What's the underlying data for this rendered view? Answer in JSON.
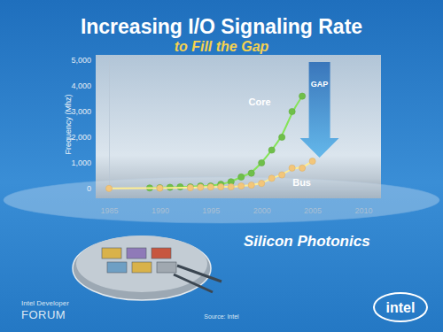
{
  "chart_data": {
    "type": "scatter",
    "title": "Increasing I/O Signaling Rate",
    "subtitle": "to Fill the Gap",
    "y_label": "Frequency (Mhz)",
    "xlim": [
      1985,
      2010
    ],
    "xticks": [
      1985,
      1990,
      1995,
      2000,
      2005,
      2010
    ],
    "ylim": [
      0,
      5000
    ],
    "yticks": [
      0,
      {
        "value": 1000,
        "label": "1,000"
      },
      {
        "value": 2000,
        "label": "2,000"
      },
      {
        "value": 3000,
        "label": "3,000"
      },
      {
        "value": 4000,
        "label": "4,000"
      },
      {
        "value": 5000,
        "label": "5,000"
      }
    ],
    "grid": false,
    "annotations": [
      "GAP"
    ],
    "series": [
      {
        "name": "Core",
        "color": "#6fbf4a",
        "marker": "circle",
        "line_style": "solid",
        "x": [
          1989,
          1990,
          1991,
          1992,
          1993,
          1994,
          1995,
          1996,
          1997,
          1998,
          1999,
          2000,
          2001,
          2002,
          2003,
          2004
        ],
        "values": [
          25,
          33,
          50,
          66,
          66,
          100,
          100,
          166,
          266,
          450,
          600,
          1000,
          1500,
          2000,
          3000,
          3600
        ]
      },
      {
        "name": "Bus",
        "color": "#f3c67a",
        "marker": "circle",
        "line_style": "solid",
        "x": [
          1985,
          1990,
          1993,
          1994,
          1995,
          1996,
          1997,
          1998,
          1999,
          2000,
          2001,
          2002,
          2003,
          2004,
          2005
        ],
        "values": [
          5,
          16,
          33,
          50,
          60,
          66,
          66,
          100,
          133,
          200,
          400,
          533,
          800,
          800,
          1066
        ]
      }
    ]
  },
  "page": {
    "heading": "Silicon Photonics",
    "footer_left": [
      "Intel Developer",
      "FORUM"
    ],
    "source": "Source: Intel",
    "logo": "intel"
  }
}
